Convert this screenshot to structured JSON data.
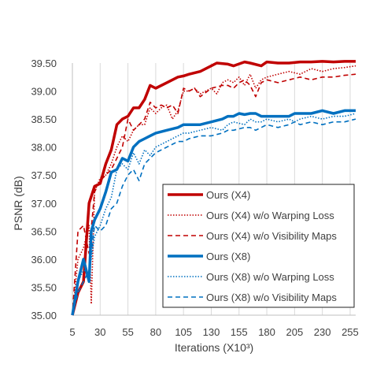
{
  "chart_data": {
    "type": "line",
    "title": "",
    "xlabel": "Iterations (X10³)",
    "ylabel": "PSNR (dB)",
    "xlim": [
      5,
      260
    ],
    "ylim": [
      35.0,
      39.5
    ],
    "x_ticks": [
      "5",
      "30",
      "55",
      "80",
      "105",
      "130",
      "155",
      "180",
      "205",
      "230",
      "255"
    ],
    "y_ticks": [
      "35.00",
      "35.50",
      "36.00",
      "36.50",
      "37.00",
      "37.50",
      "38.00",
      "38.50",
      "39.00",
      "39.50"
    ],
    "grid": "vertical",
    "legend_position": "bottom-right inside plot",
    "series": [
      {
        "name": "Ours (X4)",
        "color": "#c00000",
        "style": "solid-thick",
        "x": [
          5,
          10,
          15,
          20,
          25,
          30,
          35,
          40,
          45,
          50,
          55,
          60,
          65,
          70,
          75,
          80,
          90,
          100,
          105,
          110,
          120,
          130,
          135,
          145,
          150,
          160,
          165,
          175,
          180,
          190,
          200,
          210,
          220,
          230,
          240,
          250,
          260
        ],
        "y": [
          35.0,
          35.4,
          35.6,
          37.0,
          37.3,
          37.35,
          37.7,
          37.95,
          38.4,
          38.5,
          38.55,
          38.7,
          38.7,
          38.85,
          39.1,
          39.05,
          39.15,
          39.25,
          39.27,
          39.3,
          39.35,
          39.45,
          39.5,
          39.48,
          39.45,
          39.52,
          39.5,
          39.45,
          39.52,
          39.5,
          39.5,
          39.52,
          39.52,
          39.53,
          39.52,
          39.53,
          39.53
        ]
      },
      {
        "name": "Ours (X4) w/o Warping Loss",
        "color": "#c00000",
        "style": "dotted",
        "x": [
          5,
          10,
          15,
          20,
          22,
          25,
          30,
          35,
          40,
          45,
          50,
          55,
          60,
          65,
          70,
          75,
          80,
          85,
          90,
          95,
          100,
          105,
          110,
          115,
          120,
          130,
          135,
          140,
          145,
          150,
          155,
          160,
          165,
          170,
          175,
          180,
          190,
          200,
          210,
          220,
          230,
          240,
          250,
          260
        ],
        "y": [
          35.0,
          36.0,
          36.2,
          36.6,
          35.2,
          37.2,
          37.45,
          37.5,
          37.7,
          38.0,
          38.2,
          38.1,
          38.3,
          38.4,
          38.4,
          38.7,
          38.6,
          38.7,
          38.75,
          38.5,
          38.65,
          39.0,
          39.0,
          39.05,
          38.95,
          39.05,
          38.95,
          39.15,
          39.2,
          39.15,
          39.25,
          39.1,
          39.3,
          39.05,
          39.2,
          39.25,
          39.3,
          39.35,
          39.3,
          39.4,
          39.35,
          39.4,
          39.42,
          39.45
        ]
      },
      {
        "name": "Ours (X4) w/o Visibility Maps",
        "color": "#c00000",
        "style": "dashed",
        "x": [
          5,
          10,
          15,
          20,
          25,
          30,
          35,
          40,
          45,
          50,
          55,
          60,
          65,
          70,
          75,
          80,
          85,
          90,
          95,
          100,
          105,
          110,
          115,
          120,
          130,
          140,
          145,
          150,
          155,
          160,
          165,
          170,
          175,
          180,
          190,
          200,
          210,
          220,
          230,
          240,
          250,
          260
        ],
        "y": [
          35.0,
          36.5,
          36.6,
          36.1,
          37.2,
          37.4,
          37.5,
          37.6,
          37.8,
          38.0,
          38.5,
          38.3,
          38.4,
          38.5,
          38.8,
          38.7,
          38.75,
          38.7,
          38.75,
          38.6,
          39.05,
          39.0,
          39.05,
          38.9,
          39.05,
          39.1,
          39.1,
          39.05,
          39.15,
          39.2,
          39.1,
          38.9,
          39.15,
          39.2,
          39.15,
          39.2,
          39.25,
          39.2,
          39.25,
          39.25,
          39.28,
          39.3
        ]
      },
      {
        "name": "Ours (X8)",
        "color": "#0070c0",
        "style": "solid-thick",
        "x": [
          5,
          10,
          15,
          20,
          22,
          25,
          30,
          35,
          40,
          45,
          50,
          55,
          60,
          65,
          70,
          75,
          80,
          90,
          100,
          105,
          110,
          120,
          130,
          140,
          145,
          150,
          155,
          160,
          165,
          170,
          175,
          180,
          190,
          200,
          205,
          210,
          220,
          230,
          240,
          250,
          260
        ],
        "y": [
          35.0,
          35.6,
          36.0,
          35.6,
          36.5,
          36.7,
          36.9,
          37.2,
          37.55,
          37.6,
          37.8,
          37.75,
          38.0,
          38.1,
          38.15,
          38.2,
          38.25,
          38.3,
          38.35,
          38.4,
          38.4,
          38.4,
          38.45,
          38.5,
          38.55,
          38.55,
          38.6,
          38.58,
          38.6,
          38.6,
          38.55,
          38.55,
          38.55,
          38.55,
          38.6,
          38.6,
          38.6,
          38.65,
          38.6,
          38.65,
          38.65
        ]
      },
      {
        "name": "Ours (X8) w/o Warping Loss",
        "color": "#0070c0",
        "style": "dotted",
        "x": [
          5,
          10,
          15,
          20,
          25,
          30,
          35,
          40,
          45,
          50,
          55,
          60,
          65,
          70,
          75,
          80,
          90,
          100,
          105,
          110,
          120,
          130,
          140,
          145,
          150,
          160,
          165,
          170,
          175,
          180,
          190,
          200,
          205,
          210,
          220,
          230,
          240,
          250,
          260
        ],
        "y": [
          35.0,
          35.6,
          35.8,
          35.75,
          36.4,
          36.6,
          36.9,
          37.1,
          37.6,
          37.7,
          37.6,
          37.9,
          37.7,
          37.95,
          37.85,
          38.0,
          38.1,
          38.2,
          38.25,
          38.25,
          38.3,
          38.35,
          38.3,
          38.4,
          38.45,
          38.4,
          38.5,
          38.45,
          38.45,
          38.5,
          38.45,
          38.5,
          38.45,
          38.5,
          38.55,
          38.5,
          38.55,
          38.55,
          38.6
        ]
      },
      {
        "name": "Ours (X8) w/o Visibility Maps",
        "color": "#0070c0",
        "style": "dashed",
        "x": [
          5,
          10,
          15,
          20,
          25,
          30,
          35,
          40,
          45,
          50,
          55,
          60,
          65,
          70,
          75,
          80,
          90,
          100,
          105,
          110,
          120,
          130,
          140,
          145,
          150,
          160,
          165,
          170,
          175,
          180,
          190,
          200,
          205,
          210,
          220,
          230,
          240,
          250,
          260
        ],
        "y": [
          35.0,
          35.4,
          35.6,
          35.8,
          36.6,
          36.5,
          36.6,
          36.9,
          37.0,
          37.3,
          37.5,
          37.6,
          37.4,
          37.7,
          37.8,
          37.9,
          38.0,
          38.1,
          38.1,
          38.15,
          38.2,
          38.2,
          38.25,
          38.3,
          38.3,
          38.35,
          38.35,
          38.3,
          38.35,
          38.4,
          38.35,
          38.4,
          38.45,
          38.4,
          38.45,
          38.4,
          38.45,
          38.45,
          38.5
        ]
      }
    ]
  }
}
